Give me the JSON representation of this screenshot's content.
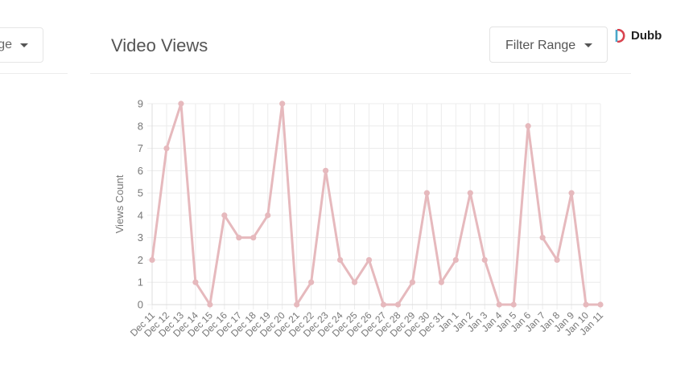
{
  "header": {
    "left_card_label": "ge",
    "title": "Video Views",
    "filter_label": "Filter Range",
    "logo_text": "Dubb"
  },
  "colors": {
    "line": "#e6b9bd",
    "grid": "#ececec",
    "text": "#777777"
  },
  "chart_data": {
    "type": "line",
    "title": "",
    "xlabel": "",
    "ylabel": "Views Count",
    "ylim": [
      0,
      9
    ],
    "yticks": [
      0,
      1,
      2,
      3,
      4,
      5,
      6,
      7,
      8,
      9
    ],
    "grid": true,
    "categories": [
      "Dec 11",
      "Dec 12",
      "Dec 13",
      "Dec 14",
      "Dec 15",
      "Dec 16",
      "Dec 17",
      "Dec 18",
      "Dec 19",
      "Dec 20",
      "Dec 21",
      "Dec 22",
      "Dec 23",
      "Dec 24",
      "Dec 25",
      "Dec 26",
      "Dec 27",
      "Dec 28",
      "Dec 29",
      "Dec 30",
      "Dec 31",
      "Jan 1",
      "Jan 2",
      "Jan 3",
      "Jan 4",
      "Jan 5",
      "Jan 6",
      "Jan 7",
      "Jan 8",
      "Jan 9",
      "Jan 10",
      "Jan 11"
    ],
    "values": [
      2,
      7,
      9,
      1,
      0,
      4,
      3,
      3,
      4,
      9,
      0,
      1,
      6,
      2,
      1,
      2,
      0,
      0,
      1,
      5,
      1,
      2,
      5,
      2,
      0,
      0,
      8,
      3,
      2,
      5,
      0,
      0
    ]
  }
}
